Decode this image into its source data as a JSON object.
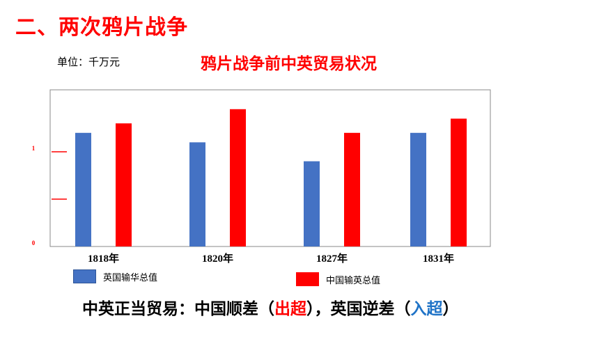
{
  "section_title": "二、两次鸦片战争",
  "unit_label": "单位：千万元",
  "chart_data": {
    "type": "bar",
    "title": "鸦片战争前中英贸易状况",
    "categories": [
      "1818年",
      "1820年",
      "1827年",
      "1831年"
    ],
    "series": [
      {
        "name": "英国输华总值",
        "color": "#4472c4",
        "values": [
          1.2,
          1.1,
          0.9,
          1.2
        ]
      },
      {
        "name": "中国输英总值",
        "color": "#ff0000",
        "values": [
          1.3,
          1.45,
          1.2,
          1.35
        ]
      }
    ],
    "ylim": [
      0,
      1.6
    ],
    "yticks": [
      {
        "value": 0,
        "label": "0"
      },
      {
        "value": 0.5,
        "label": ""
      },
      {
        "value": 1,
        "label": "1"
      }
    ],
    "xlabel": "",
    "ylabel": "",
    "grid": false,
    "legend_position": "bottom"
  },
  "conclusion": {
    "part1": "中英正当贸易：中国顺差（",
    "highlight1": "出超",
    "part2": "），英国逆差（",
    "highlight2": "入超",
    "part3": "）"
  }
}
